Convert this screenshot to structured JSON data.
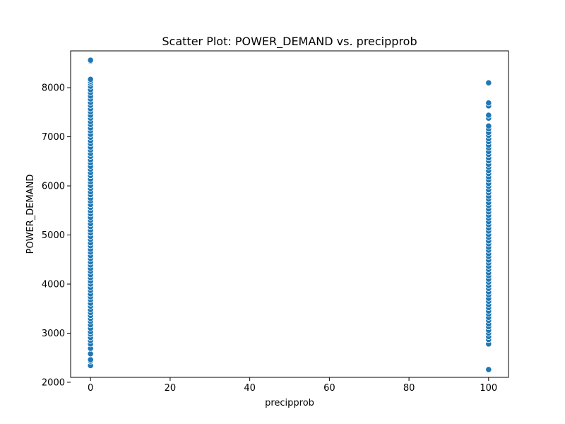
{
  "chart_data": {
    "type": "scatter",
    "title": "Scatter Plot: POWER_DEMAND vs. precipprob",
    "xlabel": "precipprob",
    "ylabel": "POWER_DEMAND",
    "xlim": [
      -5,
      105
    ],
    "ylim": [
      2100,
      8750
    ],
    "xticks": [
      0,
      20,
      40,
      60,
      80,
      100
    ],
    "yticks": [
      2000,
      3000,
      4000,
      5000,
      6000,
      7000,
      8000
    ],
    "point_color": "#1f77b4",
    "grid": false,
    "series": [
      {
        "name": "POWER_DEMAND",
        "points": [
          [
            0,
            2340
          ],
          [
            0,
            2430
          ],
          [
            0,
            2460
          ],
          [
            0,
            2580
          ],
          [
            0,
            2690
          ],
          [
            0,
            2780
          ],
          [
            0,
            2850
          ],
          [
            0,
            2910
          ],
          [
            0,
            2980
          ],
          [
            0,
            3030
          ],
          [
            0,
            3100
          ],
          [
            0,
            3170
          ],
          [
            0,
            3240
          ],
          [
            0,
            3300
          ],
          [
            0,
            3360
          ],
          [
            0,
            3420
          ],
          [
            0,
            3480
          ],
          [
            0,
            3550
          ],
          [
            0,
            3610
          ],
          [
            0,
            3680
          ],
          [
            0,
            3740
          ],
          [
            0,
            3800
          ],
          [
            0,
            3870
          ],
          [
            0,
            3930
          ],
          [
            0,
            4000
          ],
          [
            0,
            4060
          ],
          [
            0,
            4130
          ],
          [
            0,
            4190
          ],
          [
            0,
            4260
          ],
          [
            0,
            4320
          ],
          [
            0,
            4390
          ],
          [
            0,
            4450
          ],
          [
            0,
            4520
          ],
          [
            0,
            4580
          ],
          [
            0,
            4650
          ],
          [
            0,
            4710
          ],
          [
            0,
            4780
          ],
          [
            0,
            4840
          ],
          [
            0,
            4910
          ],
          [
            0,
            4970
          ],
          [
            0,
            5040
          ],
          [
            0,
            5100
          ],
          [
            0,
            5170
          ],
          [
            0,
            5230
          ],
          [
            0,
            5300
          ],
          [
            0,
            5360
          ],
          [
            0,
            5430
          ],
          [
            0,
            5490
          ],
          [
            0,
            5560
          ],
          [
            0,
            5620
          ],
          [
            0,
            5690
          ],
          [
            0,
            5750
          ],
          [
            0,
            5820
          ],
          [
            0,
            5880
          ],
          [
            0,
            5950
          ],
          [
            0,
            6010
          ],
          [
            0,
            6080
          ],
          [
            0,
            6140
          ],
          [
            0,
            6210
          ],
          [
            0,
            6270
          ],
          [
            0,
            6340
          ],
          [
            0,
            6400
          ],
          [
            0,
            6470
          ],
          [
            0,
            6530
          ],
          [
            0,
            6600
          ],
          [
            0,
            6660
          ],
          [
            0,
            6730
          ],
          [
            0,
            6790
          ],
          [
            0,
            6860
          ],
          [
            0,
            6920
          ],
          [
            0,
            6990
          ],
          [
            0,
            7050
          ],
          [
            0,
            7120
          ],
          [
            0,
            7180
          ],
          [
            0,
            7250
          ],
          [
            0,
            7310
          ],
          [
            0,
            7380
          ],
          [
            0,
            7440
          ],
          [
            0,
            7510
          ],
          [
            0,
            7570
          ],
          [
            0,
            7640
          ],
          [
            0,
            7700
          ],
          [
            0,
            7770
          ],
          [
            0,
            7830
          ],
          [
            0,
            7900
          ],
          [
            0,
            7960
          ],
          [
            0,
            8030
          ],
          [
            0,
            8090
          ],
          [
            0,
            8130
          ],
          [
            0,
            8170
          ],
          [
            0,
            8540
          ],
          [
            0,
            8560
          ],
          [
            100,
            2260
          ],
          [
            100,
            2780
          ],
          [
            100,
            2870
          ],
          [
            100,
            2930
          ],
          [
            100,
            3000
          ],
          [
            100,
            3060
          ],
          [
            100,
            3130
          ],
          [
            100,
            3190
          ],
          [
            100,
            3260
          ],
          [
            100,
            3320
          ],
          [
            100,
            3390
          ],
          [
            100,
            3450
          ],
          [
            100,
            3520
          ],
          [
            100,
            3580
          ],
          [
            100,
            3650
          ],
          [
            100,
            3710
          ],
          [
            100,
            3780
          ],
          [
            100,
            3840
          ],
          [
            100,
            3910
          ],
          [
            100,
            3970
          ],
          [
            100,
            4040
          ],
          [
            100,
            4100
          ],
          [
            100,
            4170
          ],
          [
            100,
            4230
          ],
          [
            100,
            4300
          ],
          [
            100,
            4360
          ],
          [
            100,
            4430
          ],
          [
            100,
            4490
          ],
          [
            100,
            4560
          ],
          [
            100,
            4620
          ],
          [
            100,
            4690
          ],
          [
            100,
            4750
          ],
          [
            100,
            4820
          ],
          [
            100,
            4880
          ],
          [
            100,
            4950
          ],
          [
            100,
            5010
          ],
          [
            100,
            5080
          ],
          [
            100,
            5140
          ],
          [
            100,
            5210
          ],
          [
            100,
            5270
          ],
          [
            100,
            5340
          ],
          [
            100,
            5400
          ],
          [
            100,
            5470
          ],
          [
            100,
            5530
          ],
          [
            100,
            5600
          ],
          [
            100,
            5660
          ],
          [
            100,
            5730
          ],
          [
            100,
            5790
          ],
          [
            100,
            5860
          ],
          [
            100,
            5920
          ],
          [
            100,
            5990
          ],
          [
            100,
            6050
          ],
          [
            100,
            6120
          ],
          [
            100,
            6180
          ],
          [
            100,
            6250
          ],
          [
            100,
            6310
          ],
          [
            100,
            6380
          ],
          [
            100,
            6440
          ],
          [
            100,
            6510
          ],
          [
            100,
            6570
          ],
          [
            100,
            6640
          ],
          [
            100,
            6700
          ],
          [
            100,
            6770
          ],
          [
            100,
            6830
          ],
          [
            100,
            6900
          ],
          [
            100,
            6960
          ],
          [
            100,
            7030
          ],
          [
            100,
            7090
          ],
          [
            100,
            7160
          ],
          [
            100,
            7220
          ],
          [
            100,
            7380
          ],
          [
            100,
            7440
          ],
          [
            100,
            7630
          ],
          [
            100,
            7690
          ],
          [
            100,
            8100
          ]
        ]
      }
    ]
  }
}
